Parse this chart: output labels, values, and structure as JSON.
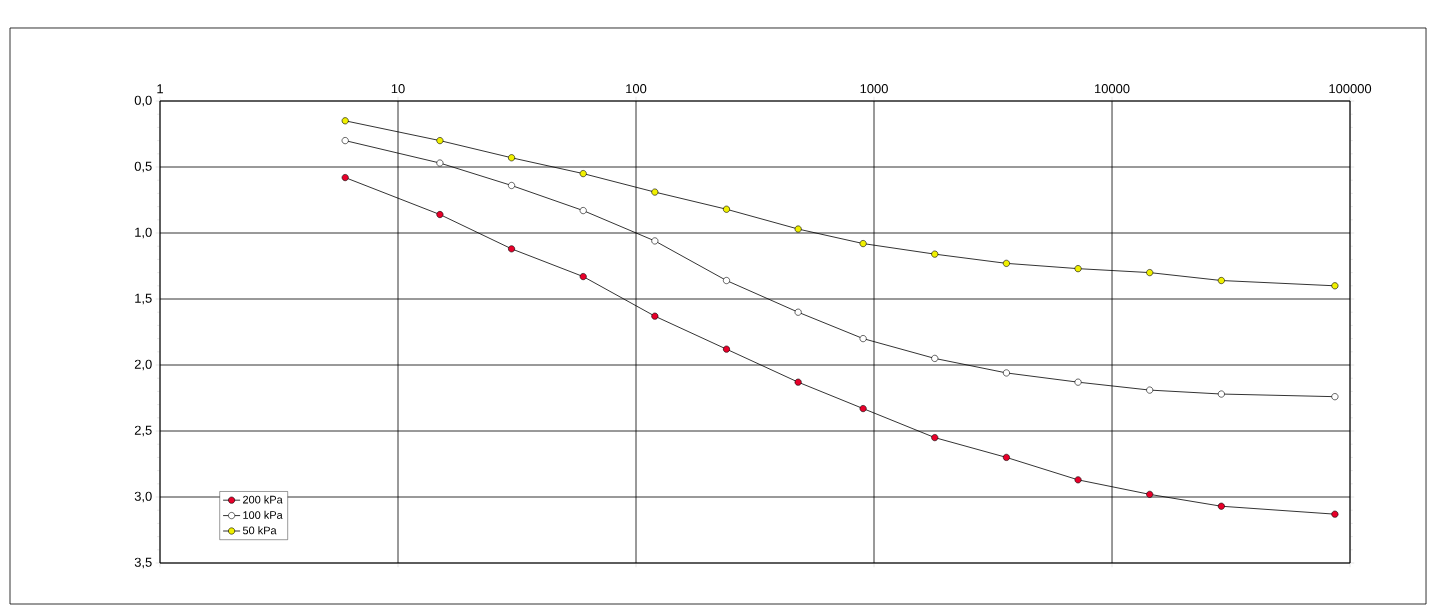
{
  "chart_data": {
    "type": "line",
    "xlim": [
      1,
      100000
    ],
    "ylim": [
      3.5,
      0
    ],
    "log": "x",
    "grid": true,
    "legend": "bottom left",
    "marker": "circle",
    "line_style": "solid",
    "xticks": [
      1,
      10,
      100,
      1000,
      10000,
      100000
    ],
    "yticks": [
      {
        "value": 0,
        "label": "0,0"
      },
      {
        "value": 0.5,
        "label": "0,5"
      },
      {
        "value": 1,
        "label": "1,0"
      },
      {
        "value": 1.5,
        "label": "1,5"
      },
      {
        "value": 2,
        "label": "2,0"
      },
      {
        "value": 2.5,
        "label": "2,5"
      },
      {
        "value": 3,
        "label": "3,0"
      },
      {
        "value": 3.5,
        "label": "3,5"
      }
    ],
    "x": [
      6,
      15,
      30,
      60,
      120,
      240,
      480,
      900,
      1800,
      3600,
      7200,
      14400,
      28800,
      86400
    ],
    "series": [
      {
        "name": "200 kPa",
        "color": "#e8002a",
        "values": [
          0.58,
          0.86,
          1.12,
          1.33,
          1.63,
          1.88,
          2.13,
          2.33,
          2.55,
          2.7,
          2.87,
          2.98,
          3.07,
          3.13
        ]
      },
      {
        "name": "100 kPa",
        "color": "#ffffff",
        "values": [
          0.3,
          0.47,
          0.64,
          0.83,
          1.06,
          1.36,
          1.6,
          1.8,
          1.95,
          2.06,
          2.13,
          2.19,
          2.22,
          2.24
        ]
      },
      {
        "name": "50 kPa",
        "color": "#f0f000",
        "values": [
          0.15,
          0.3,
          0.43,
          0.55,
          0.69,
          0.82,
          0.97,
          1.08,
          1.16,
          1.23,
          1.27,
          1.3,
          1.36,
          1.4
        ]
      }
    ]
  }
}
